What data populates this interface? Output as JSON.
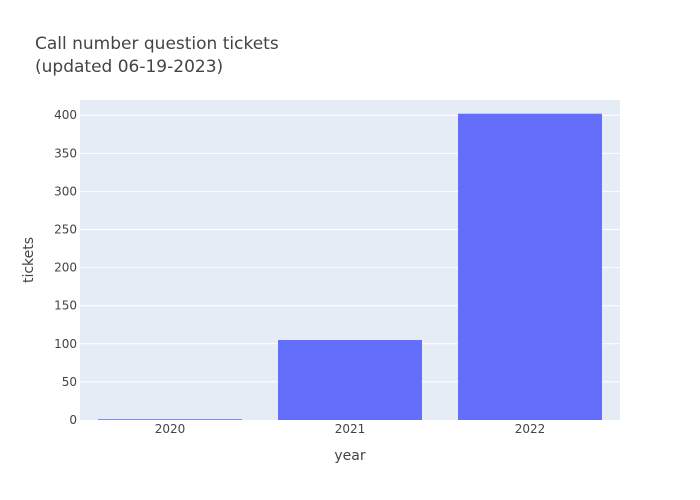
{
  "chart_data": {
    "type": "bar",
    "title": "Call number question tickets",
    "subtitle": "(updated 06-19-2023)",
    "xlabel": "year",
    "ylabel": "tickets",
    "categories": [
      "2020",
      "2021",
      "2022"
    ],
    "values": [
      1,
      105,
      402
    ],
    "ylim": [
      0,
      420
    ],
    "yticks": [
      0,
      50,
      100,
      150,
      200,
      250,
      300,
      350,
      400
    ],
    "grid": true,
    "legend": "none"
  },
  "colors": {
    "bar": "#636efa",
    "plot_background": "#e5ecf6",
    "gridline": "#ffffff",
    "text": "#444444"
  }
}
